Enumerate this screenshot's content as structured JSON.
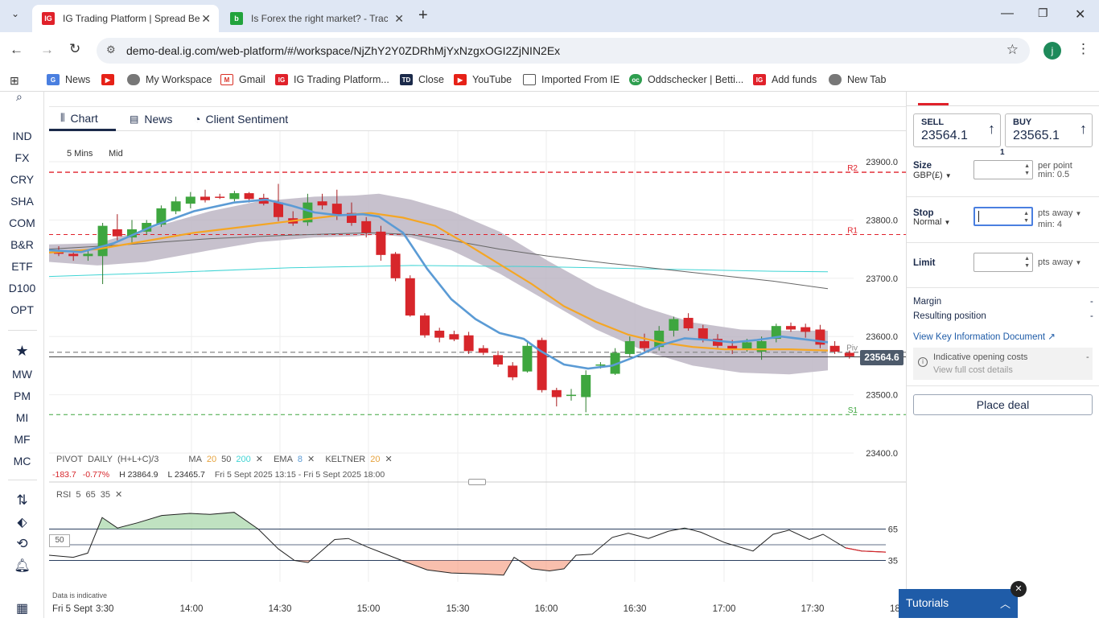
{
  "browser": {
    "tabs": [
      {
        "title": "IG Trading Platform | Spread Be",
        "icon": "ig-favicon",
        "active": true
      },
      {
        "title": "Is Forex the right market? - Trac",
        "icon": "b-favicon",
        "active": false
      }
    ],
    "url": "demo-deal.ig.com/web-platform/#/workspace/NjZhY2Y0ZDRhMjYxNzgxOGI2ZjNIN2Ex",
    "profile_initial": "j",
    "bookmarks": [
      "News",
      "My Workspace",
      "Gmail",
      "IG Trading Platform...",
      "Close",
      "YouTube",
      "Imported From IE",
      "Oddschecker | Betti...",
      "Add funds",
      "New Tab"
    ]
  },
  "leftnav": {
    "markets": [
      "IND",
      "FX",
      "CRY",
      "SHA",
      "COM",
      "B&R",
      "ETF",
      "D100",
      "OPT"
    ],
    "lists": [
      "MW",
      "PM",
      "MI",
      "MF",
      "MC"
    ]
  },
  "chart_tabs": [
    "Chart",
    "News",
    "Client Sentiment"
  ],
  "chart": {
    "interval": "5 Mins",
    "price_type": "Mid",
    "current_price": "23564.6",
    "pivot_labels": {
      "r2": "R2",
      "r1": "R1",
      "piv": "Piv",
      "s1": "S1"
    },
    "price_ticks": [
      "23900.0",
      "23800.0",
      "23700.0",
      "23600.0",
      "23500.0",
      "23400.0"
    ],
    "time_ticks": [
      "Fri 5 Sept",
      "3:30",
      "14:00",
      "14:30",
      "15:00",
      "15:30",
      "16:00",
      "16:30",
      "17:00",
      "17:30",
      "18"
    ],
    "indicator_legend": {
      "pivot": "PIVOT",
      "pivot_period": "DAILY",
      "pivot_formula": "(H+L+C)/3",
      "ma": "MA",
      "ma1": "20",
      "ma2": "50",
      "ma3": "200",
      "ema": "EMA",
      "ema1": "8",
      "keltner": "KELTNER",
      "keltner1": "20"
    },
    "stats": {
      "change": "-183.7",
      "change_pct": "-0.77%",
      "high": "H 23864.9",
      "low": "L 23465.7",
      "range": "Fri 5 Sept 2025 13:15 - Fri 5 Sept 2025 18:00"
    },
    "rsi_legend": {
      "name": "RSI",
      "p1": "5",
      "p2": "65",
      "p3": "35"
    },
    "rsi_ticks": [
      "65",
      "35"
    ],
    "rsi_midline": "50",
    "disclaimer": "Data is indicative",
    "colors": {
      "up": "#3ea63f",
      "down": "#d7262b",
      "ema": "#5b9bd5",
      "ma20": "#f5a623",
      "ma200": "#3fd4d4",
      "ma50": "#666666",
      "band": "#b9b2c0"
    }
  },
  "deal": {
    "sell_label": "SELL",
    "sell_price": "23564.1",
    "buy_label": "BUY",
    "buy_price": "23565.1",
    "spread": "1",
    "size_label": "Size",
    "size_sub": "GBP(£)",
    "size_side": "per point",
    "size_min": "min: 0.5",
    "stop_label": "Stop",
    "stop_sub": "Normal",
    "stop_side": "pts away",
    "stop_min": "min: 4",
    "limit_label": "Limit",
    "limit_side": "pts away",
    "margin_label": "Margin",
    "margin_val": "-",
    "resulting_label": "Resulting position",
    "resulting_val": "-",
    "kid_link": "View Key Information Document",
    "costs_title": "Indicative opening costs",
    "costs_val": "-",
    "costs_link": "View full cost details",
    "place_deal": "Place deal"
  },
  "tutorials": {
    "label": "Tutorials"
  }
}
